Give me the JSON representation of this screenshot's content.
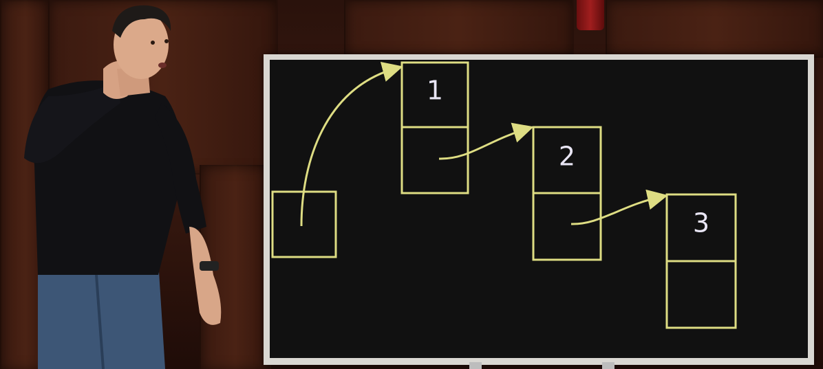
{
  "scene": {
    "subject": "lecturer-with-whiteboard",
    "colors": {
      "wood": "#3a1a10",
      "board_bg": "#111111",
      "board_frame": "#d9d7d2",
      "chalk_lines": "#dedd83",
      "numbers": "#e9e6f5"
    }
  },
  "diagram": {
    "type": "linked-list",
    "pointer_label": "",
    "nodes": [
      {
        "value": "1"
      },
      {
        "value": "2"
      },
      {
        "value": "3"
      }
    ]
  }
}
